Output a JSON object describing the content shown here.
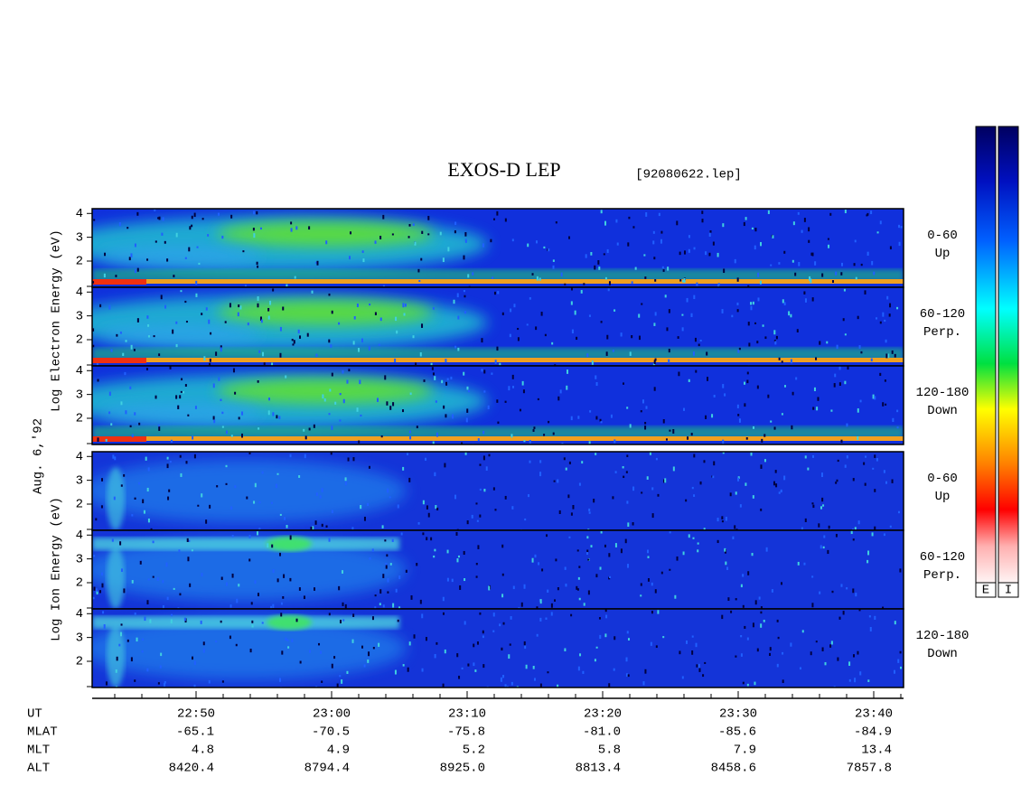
{
  "title": "EXOS-D LEP",
  "file": "[92080622.lep]",
  "date_label": "Aug. 6,'92",
  "ylim": [
    0.9,
    4.2
  ],
  "yticks": [
    2,
    3,
    4
  ],
  "groups": [
    {
      "ylabel": "Log Electron Energy (eV)",
      "panels": [
        {
          "angle": "0-60",
          "dir": "Up"
        },
        {
          "angle": "60-120",
          "dir": "Perp."
        },
        {
          "angle": "120-180",
          "dir": "Down"
        }
      ]
    },
    {
      "ylabel": "Log Ion Energy (eV)",
      "panels": [
        {
          "angle": "0-60",
          "dir": "Up"
        },
        {
          "angle": "60-120",
          "dir": "Perp."
        },
        {
          "angle": "120-180",
          "dir": "Down"
        }
      ]
    }
  ],
  "axis_rows": [
    {
      "label": "UT",
      "values": [
        "22:50",
        "23:00",
        "23:10",
        "23:20",
        "23:30",
        "23:40"
      ]
    },
    {
      "label": "MLAT",
      "values": [
        "-65.1",
        "-70.5",
        "-75.8",
        "-81.0",
        "-85.6",
        "-84.9"
      ]
    },
    {
      "label": "MLT",
      "values": [
        "4.8",
        "4.9",
        "5.2",
        "5.8",
        "7.9",
        "13.4"
      ]
    },
    {
      "label": "ALT",
      "values": [
        "8420.4",
        "8794.4",
        "8925.0",
        "8813.4",
        "8458.6",
        "7857.8"
      ]
    }
  ],
  "colorbar_labels": [
    "E",
    "I"
  ]
}
